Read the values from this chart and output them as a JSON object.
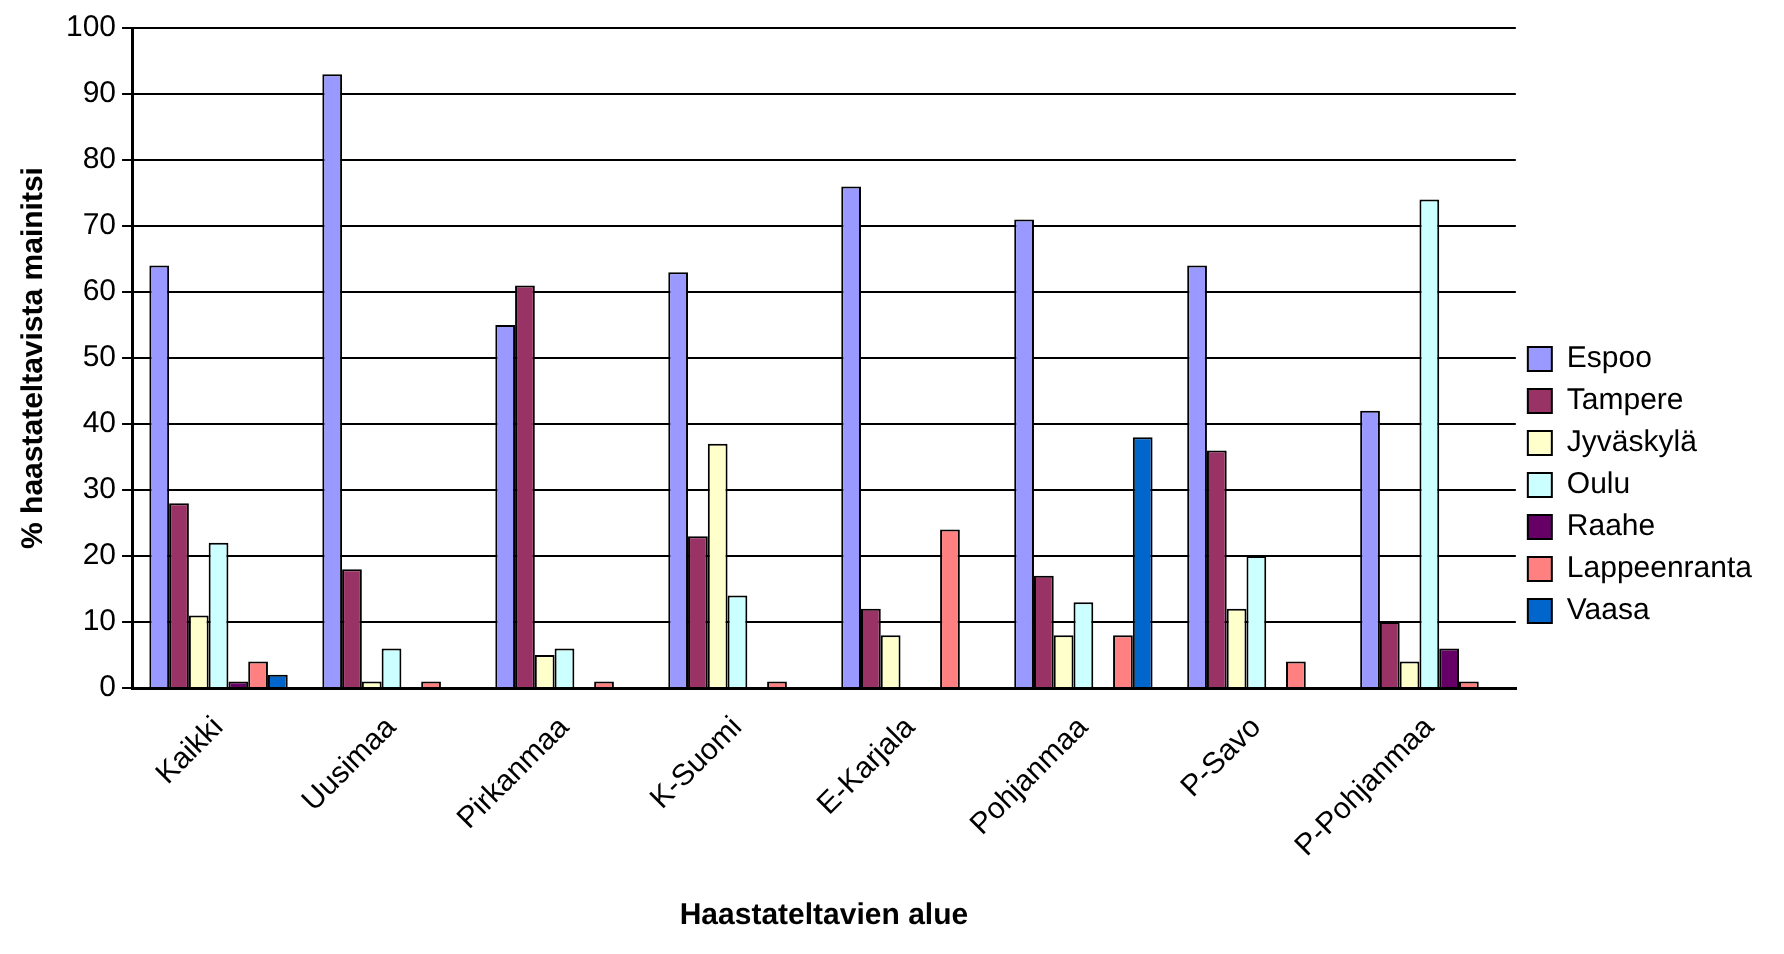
{
  "chart_data": {
    "type": "bar",
    "xlabel": "Haastateltavien alue",
    "ylabel": "% haastateltavista mainitsi",
    "categories": [
      "Kaikki",
      "Uusimaa",
      "Pirkanmaa",
      "K-Suomi",
      "E-Karjala",
      "Pohjanmaa",
      "P-Savo",
      "P-Pohjanmaa"
    ],
    "series": [
      {
        "name": "Espoo",
        "color": "#9999ff",
        "values": [
          64,
          93,
          55,
          63,
          76,
          71,
          64,
          42
        ]
      },
      {
        "name": "Tampere",
        "color": "#993366",
        "values": [
          28,
          18,
          61,
          23,
          12,
          17,
          36,
          10
        ]
      },
      {
        "name": "Jyväskylä",
        "color": "#ffffcc",
        "values": [
          11,
          1,
          5,
          37,
          8,
          8,
          12,
          4
        ]
      },
      {
        "name": "Oulu",
        "color": "#ccffff",
        "values": [
          22,
          6,
          6,
          14,
          0,
          13,
          20,
          74
        ]
      },
      {
        "name": "Raahe",
        "color": "#660066",
        "values": [
          1,
          0,
          0,
          0,
          0,
          0,
          0,
          6
        ]
      },
      {
        "name": "Lappeenranta",
        "color": "#ff8080",
        "values": [
          4,
          1,
          1,
          1,
          24,
          8,
          4,
          1
        ]
      },
      {
        "name": "Vaasa",
        "color": "#0066cc",
        "values": [
          2,
          0,
          0,
          0,
          0,
          38,
          0,
          0
        ]
      }
    ],
    "ylim": [
      0,
      100
    ],
    "yticks": [
      0,
      10,
      20,
      30,
      40,
      50,
      60,
      70,
      80,
      90,
      100
    ],
    "grid": "y",
    "legend": "right"
  }
}
